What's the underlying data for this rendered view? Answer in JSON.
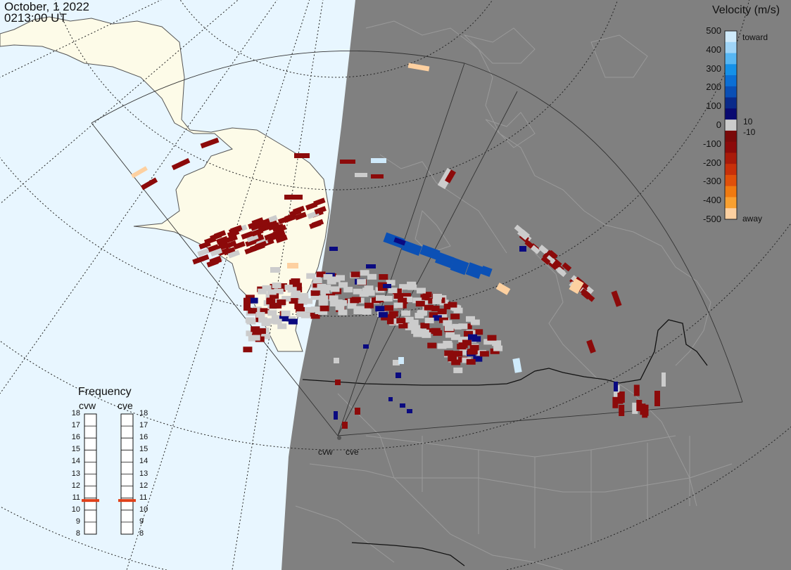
{
  "header": {
    "date": "October, 1 2022",
    "time": "0213:00 UT"
  },
  "legend": {
    "title": "Velocity (m/s)",
    "ticks": [
      "500",
      "400",
      "300",
      "200",
      "100",
      "0",
      "-100",
      "-200",
      "-300",
      "-400",
      "-500"
    ],
    "label_toward": "toward",
    "label_away": "away",
    "label_pos10": "10",
    "label_neg10": "-10",
    "colors": [
      "#cfeafb",
      "#9fd4f7",
      "#57b6f2",
      "#1591e8",
      "#0b6fd5",
      "#0a4fb5",
      "#0a2a8a",
      "#0a0a70",
      "#cccccc",
      "#7a0a0a",
      "#8c0a0a",
      "#a91a0a",
      "#c8300a",
      "#e0500a",
      "#f07a10",
      "#f9a030",
      "#fdd0a0"
    ]
  },
  "frequency": {
    "title": "Frequency",
    "radars": [
      "cvw",
      "cve"
    ],
    "scale": [
      "18",
      "17",
      "16",
      "15",
      "14",
      "13",
      "12",
      "11",
      "10",
      "9",
      "8"
    ],
    "cvw_mhz": 10.8,
    "cve_mhz": 10.8
  },
  "sites": {
    "west": "cvw",
    "east": "cve"
  },
  "map_colors": {
    "ocean": "#e8f6ff",
    "land": "#fdfbe8",
    "night": "#808080",
    "gray_scatter": "#cccccc"
  }
}
